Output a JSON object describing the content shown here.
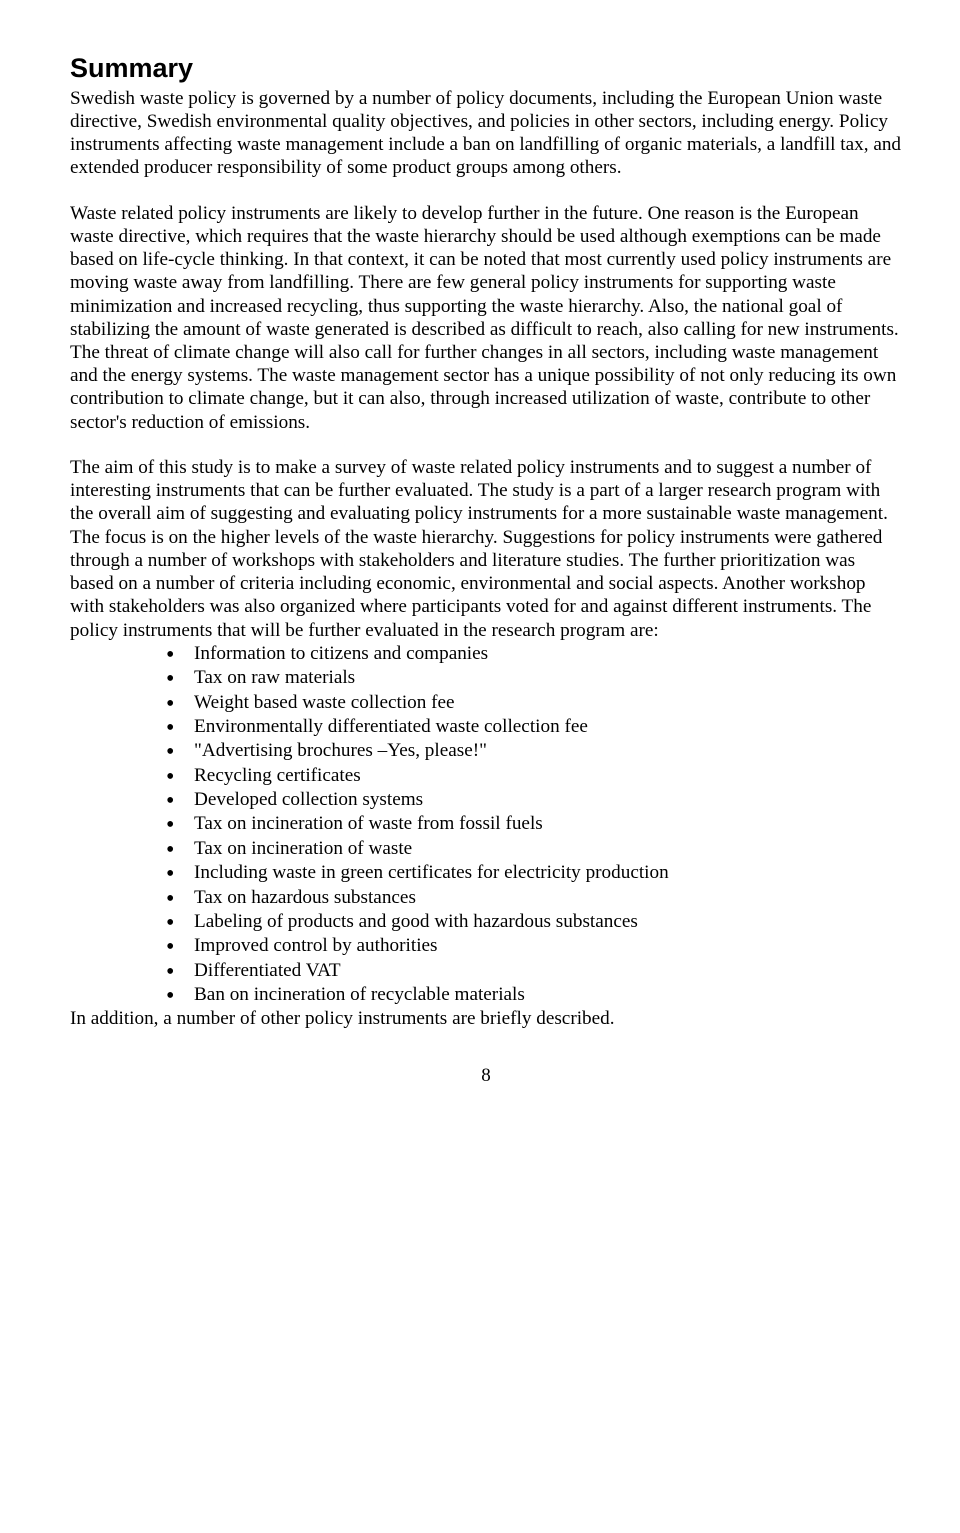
{
  "heading": "Summary",
  "para1": "Swedish waste policy is governed by a number of policy documents, including the European Union waste directive, Swedish environmental quality objectives, and policies in other sectors, including energy. Policy instruments affecting waste management include a ban on landfilling of organic materials, a landfill tax, and extended producer responsibility of some product groups among others.",
  "para2": "Waste related policy instruments are likely to develop further in the future. One reason is the European waste directive, which requires that the waste hierarchy should be used although exemptions can be made based on life-cycle thinking. In that context, it can be noted that most currently used policy instruments are moving waste away from landfilling. There are few general policy instruments for supporting waste minimization and increased recycling, thus supporting the waste hierarchy. Also, the national goal of stabilizing the amount of waste generated is described as difficult to reach, also calling for new instruments. The threat of climate change will also call for further changes in all sectors, including waste management and the energy systems. The waste management sector has a unique possibility of not only reducing its own contribution to climate change, but it can also, through increased utilization of waste, contribute to other sector's reduction of emissions.",
  "para3": "The aim of this study is to make a survey of waste related policy instruments and to suggest a number of interesting instruments that can be further evaluated. The study is a part of a larger research program with the overall aim of suggesting and evaluating policy instruments for a more sustainable waste management. The focus is on the higher levels of the waste hierarchy. Suggestions for policy instruments were gathered through a number of workshops with stakeholders and literature studies. The further prioritization was based on a number of criteria including economic, environmental and social aspects. Another workshop with stakeholders was also organized where participants voted for and against different instruments. The policy instruments that will be further evaluated in the research program are:",
  "bullets": [
    "Information to citizens and companies",
    "Tax on raw materials",
    "Weight based waste collection fee",
    "Environmentally differentiated waste collection fee",
    "\"Advertising brochures –Yes, please!\"",
    "Recycling certificates",
    "Developed collection systems",
    "Tax on incineration of waste from fossil fuels",
    "Tax on incineration of waste",
    "Including waste in green certificates for electricity production",
    "Tax on hazardous substances",
    "Labeling of products and good with hazardous substances",
    "Improved control by authorities",
    "Differentiated VAT",
    "Ban on incineration of recyclable materials"
  ],
  "para4": "In addition, a number of other policy instruments are briefly described.",
  "pageNumber": "8"
}
